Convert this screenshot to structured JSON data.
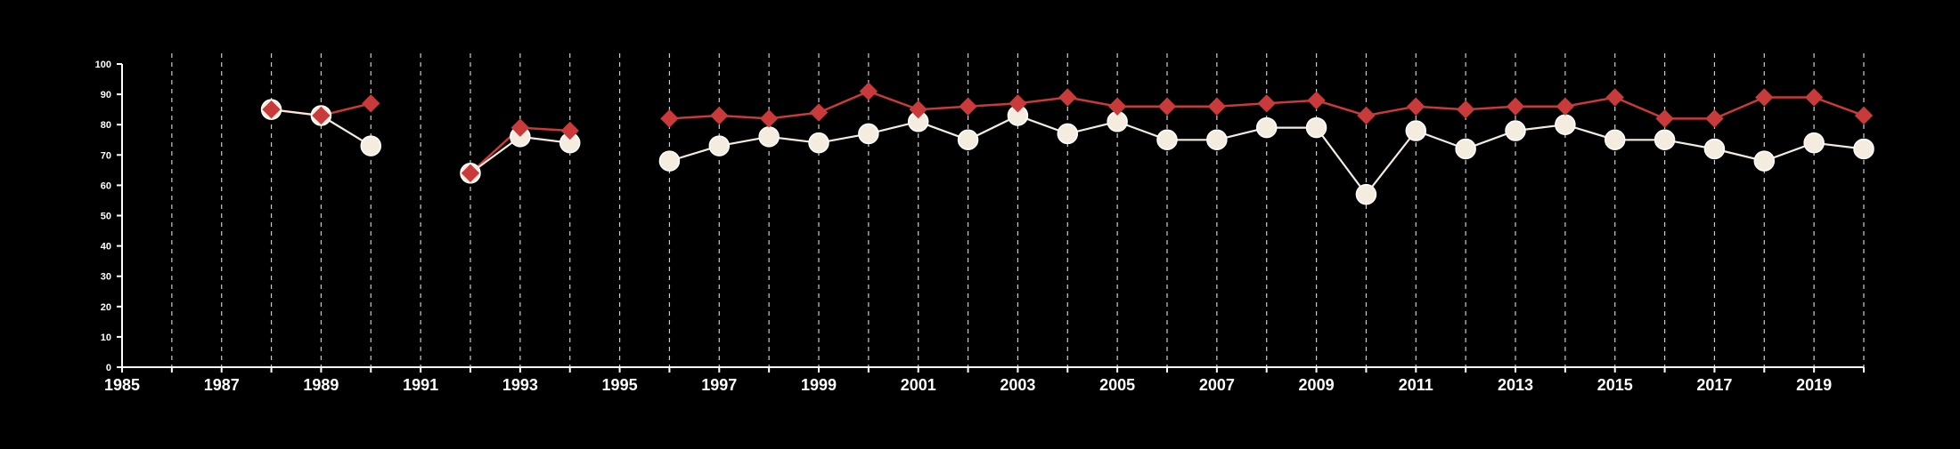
{
  "chart_data": {
    "type": "line",
    "title": "",
    "xlabel": "",
    "ylabel": "",
    "xlim": [
      1985,
      2020
    ],
    "ylim": [
      0,
      100
    ],
    "x_ticks": [
      1985,
      1987,
      1989,
      1991,
      1993,
      1995,
      1997,
      1999,
      2001,
      2003,
      2005,
      2007,
      2009,
      2011,
      2013,
      2015,
      2017,
      2019
    ],
    "y_ticks": [
      0,
      10,
      20,
      30,
      40,
      50,
      60,
      70,
      80,
      90,
      100
    ],
    "grid": "vertical dashed lines at each year",
    "legend": "none",
    "colors": {
      "background": "#000000",
      "axis": "#ffffff",
      "grid": "#cccccc",
      "series_red": "#c93a3a",
      "series_white": "#f5ece0"
    },
    "series": [
      {
        "marker": "diamond",
        "color": "#c93a3a",
        "points": [
          [
            1988,
            85
          ],
          [
            1989,
            83
          ],
          [
            1990,
            87
          ],
          [
            1992,
            64
          ],
          [
            1993,
            79
          ],
          [
            1994,
            78
          ],
          [
            1996,
            82
          ],
          [
            1997,
            83
          ],
          [
            1998,
            82
          ],
          [
            1999,
            84
          ],
          [
            2000,
            91
          ],
          [
            2001,
            85
          ],
          [
            2002,
            86
          ],
          [
            2003,
            87
          ],
          [
            2004,
            89
          ],
          [
            2005,
            86
          ],
          [
            2006,
            86
          ],
          [
            2007,
            86
          ],
          [
            2008,
            87
          ],
          [
            2009,
            88
          ],
          [
            2010,
            83
          ],
          [
            2011,
            86
          ],
          [
            2012,
            85
          ],
          [
            2013,
            86
          ],
          [
            2014,
            86
          ],
          [
            2015,
            89
          ],
          [
            2016,
            82
          ],
          [
            2017,
            82
          ],
          [
            2018,
            89
          ],
          [
            2019,
            89
          ],
          [
            2020,
            83
          ]
        ]
      },
      {
        "marker": "circle",
        "color": "#f5ece0",
        "points": [
          [
            1988,
            85
          ],
          [
            1989,
            83
          ],
          [
            1990,
            73
          ],
          [
            1992,
            64
          ],
          [
            1993,
            76
          ],
          [
            1994,
            74
          ],
          [
            1996,
            68
          ],
          [
            1997,
            73
          ],
          [
            1998,
            76
          ],
          [
            1999,
            74
          ],
          [
            2000,
            77
          ],
          [
            2001,
            81
          ],
          [
            2002,
            75
          ],
          [
            2003,
            83
          ],
          [
            2004,
            77
          ],
          [
            2005,
            81
          ],
          [
            2006,
            75
          ],
          [
            2007,
            75
          ],
          [
            2008,
            79
          ],
          [
            2009,
            79
          ],
          [
            2010,
            57
          ],
          [
            2011,
            78
          ],
          [
            2012,
            72
          ],
          [
            2013,
            78
          ],
          [
            2014,
            80
          ],
          [
            2015,
            75
          ],
          [
            2016,
            75
          ],
          [
            2017,
            72
          ],
          [
            2018,
            68
          ],
          [
            2019,
            74
          ],
          [
            2020,
            72
          ]
        ]
      }
    ]
  }
}
